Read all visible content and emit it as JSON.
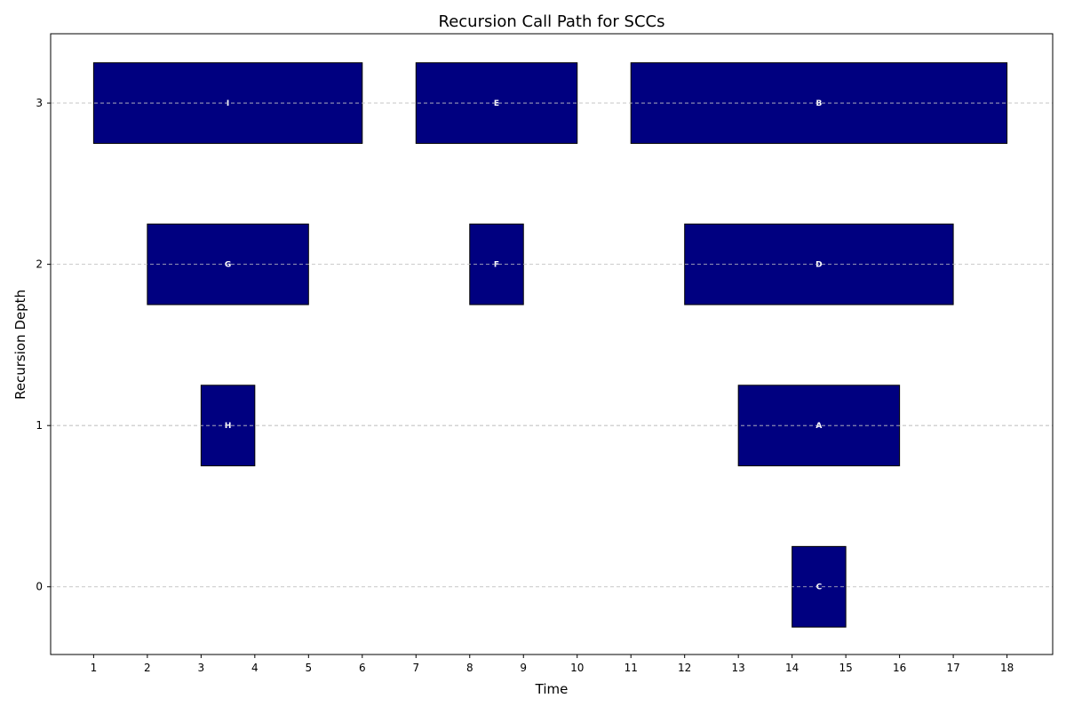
{
  "chart_data": {
    "type": "bar",
    "orientation": "horizontal-intervals",
    "title": "Recursion Call Path for SCCs",
    "xlabel": "Time",
    "ylabel": "Recursion Depth",
    "xlim": [
      0.2,
      18.85
    ],
    "ylim": [
      -0.42,
      3.43
    ],
    "xticks": [
      "1",
      "2",
      "3",
      "4",
      "5",
      "6",
      "7",
      "8",
      "9",
      "10",
      "11",
      "12",
      "13",
      "14",
      "15",
      "16",
      "17",
      "18"
    ],
    "yticks": [
      "0",
      "1",
      "2",
      "3"
    ],
    "grid": "y-dashed",
    "bar_color": "#000080",
    "bar_edge_color": "#000000",
    "label_color": "#ffffff",
    "calls": [
      {
        "label": "I",
        "start": 1,
        "end": 6,
        "depth": 3
      },
      {
        "label": "E",
        "start": 7,
        "end": 10,
        "depth": 3
      },
      {
        "label": "B",
        "start": 11,
        "end": 18,
        "depth": 3
      },
      {
        "label": "G",
        "start": 2,
        "end": 5,
        "depth": 2
      },
      {
        "label": "F",
        "start": 8,
        "end": 9,
        "depth": 2
      },
      {
        "label": "D",
        "start": 12,
        "end": 17,
        "depth": 2
      },
      {
        "label": "H",
        "start": 3,
        "end": 4,
        "depth": 1
      },
      {
        "label": "A",
        "start": 13,
        "end": 16,
        "depth": 1
      },
      {
        "label": "C",
        "start": 14,
        "end": 15,
        "depth": 0
      }
    ]
  }
}
